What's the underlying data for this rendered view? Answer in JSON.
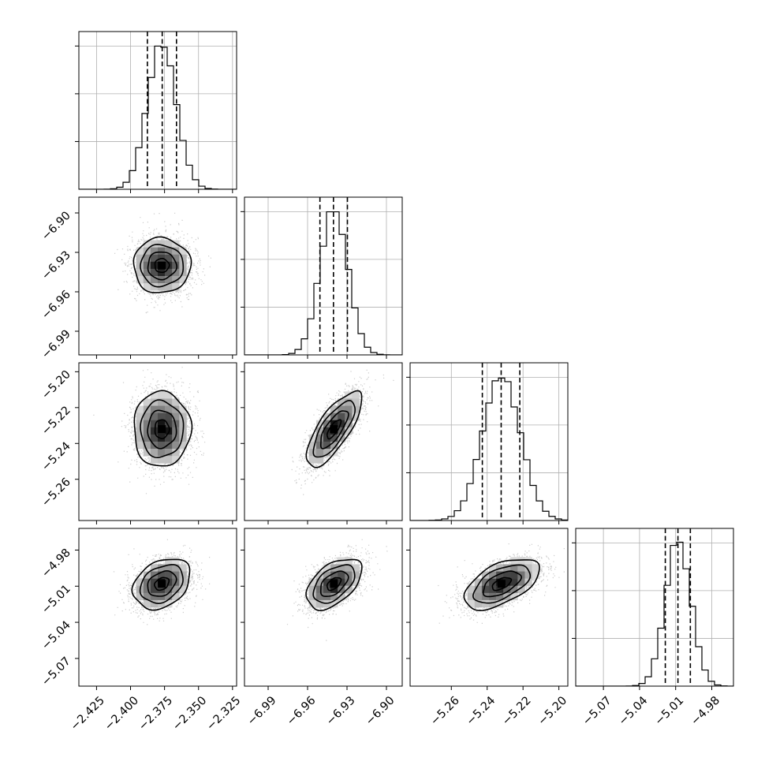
{
  "chart_data": {
    "type": "corner",
    "grid": true,
    "parameters": [
      {
        "mean": -2.377,
        "std": 0.0105,
        "range": [
          -2.438,
          -2.322
        ],
        "quantiles": [
          -2.3876,
          -2.3767,
          -2.3662
        ],
        "ticks": [
          -2.425,
          -2.4,
          -2.375,
          -2.35,
          -2.325
        ],
        "tick_labels": [
          "−2.425",
          "−2.400",
          "−2.375",
          "−2.350",
          "−2.325"
        ]
      },
      {
        "mean": -6.94,
        "std": 0.0105,
        "range": [
          -7.008,
          -6.888
        ],
        "quantiles": [
          -6.9506,
          -6.9403,
          -6.9297
        ],
        "ticks": [
          -6.99,
          -6.96,
          -6.93,
          -6.9
        ],
        "tick_labels": [
          "−6.99",
          "−6.96",
          "−6.93",
          "−6.90"
        ]
      },
      {
        "mean": -5.232,
        "std": 0.0105,
        "range": [
          -5.283,
          -5.195
        ],
        "quantiles": [
          -5.2427,
          -5.2322,
          -5.2218
        ],
        "ticks": [
          -5.26,
          -5.24,
          -5.22,
          -5.2
        ],
        "tick_labels": [
          "−5.26",
          "−5.24",
          "−5.22",
          "−5.20"
        ]
      },
      {
        "mean": -5.008,
        "std": 0.0105,
        "range": [
          -5.093,
          -4.962
        ],
        "quantiles": [
          -5.0186,
          -5.0081,
          -4.9978
        ],
        "ticks": [
          -5.07,
          -5.04,
          -5.01,
          -4.98
        ],
        "tick_labels": [
          "−5.07",
          "−5.04",
          "−5.01",
          "−4.98"
        ]
      }
    ],
    "correlations": [
      [
        1.0,
        0.0,
        0.0,
        0.3
      ],
      [
        0.0,
        1.0,
        0.75,
        0.5
      ],
      [
        0.0,
        0.75,
        1.0,
        0.55
      ],
      [
        0.3,
        0.5,
        0.55,
        1.0
      ]
    ],
    "contour_levels_sigma": [
      0.5,
      1.0,
      1.5,
      2.0
    ],
    "colors": {
      "line": "#000000",
      "grid": "#b0b0b0",
      "points": "#9a9a9a"
    }
  }
}
